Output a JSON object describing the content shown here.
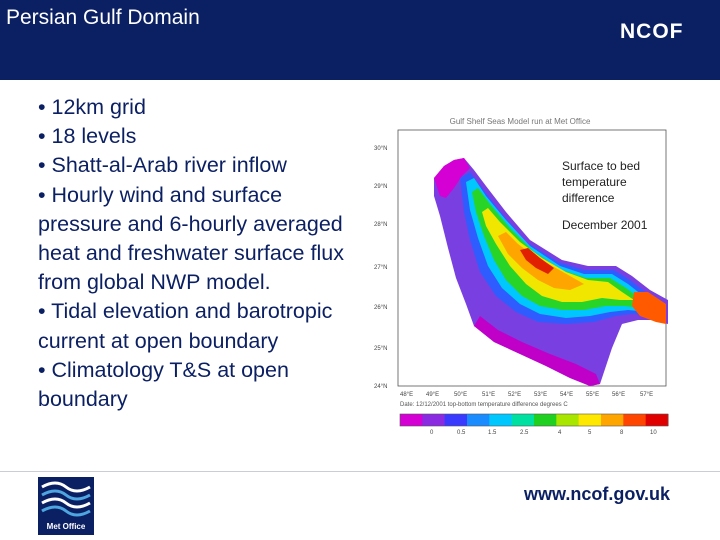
{
  "header": {
    "title": "Persian Gulf Domain",
    "brand": "NCOF"
  },
  "bullets": [
    "• 12km grid",
    "• 18 levels",
    "• Shatt-al-Arab river inflow",
    "• Hourly wind and surface pressure and 6-hourly averaged heat and freshwater surface flux from global NWP model.",
    "• Tidal elevation and barotropic current at open boundary",
    "• Climatology T&S at open boundary"
  ],
  "figure": {
    "plot_title": "Gulf Shelf Seas Model run at Met Office",
    "lat_labels": [
      "30°N",
      "29°N",
      "28°N",
      "27°N",
      "26°N",
      "25°N",
      "24°N"
    ],
    "lon_labels": [
      "48°E",
      "49°E",
      "50°E",
      "51°E",
      "52°E",
      "53°E",
      "54°E",
      "55°E",
      "56°E",
      "57°E"
    ],
    "caption": "Date: 12/12/2001  top-bottom temperature difference degrees C",
    "colorbar_ticks": [
      "0",
      "0.5",
      "1.5",
      "2.5",
      "4",
      "5",
      "8",
      "10"
    ],
    "colorbar_colors": [
      "#d400d4",
      "#8a2be2",
      "#3a3aff",
      "#1a8cff",
      "#00c8ff",
      "#00e0a0",
      "#20d020",
      "#a8e600",
      "#ffe800",
      "#ffa500",
      "#ff4500",
      "#e00000"
    ]
  },
  "annotations": {
    "surface_diff": "Surface to bed temperature difference",
    "date": "December 2001"
  },
  "footer": {
    "logo_text": "Met Office",
    "website": "www.ncof.gov.uk"
  },
  "colors": {
    "header_bg": "#0b1f63",
    "text": "#0b1f63"
  }
}
